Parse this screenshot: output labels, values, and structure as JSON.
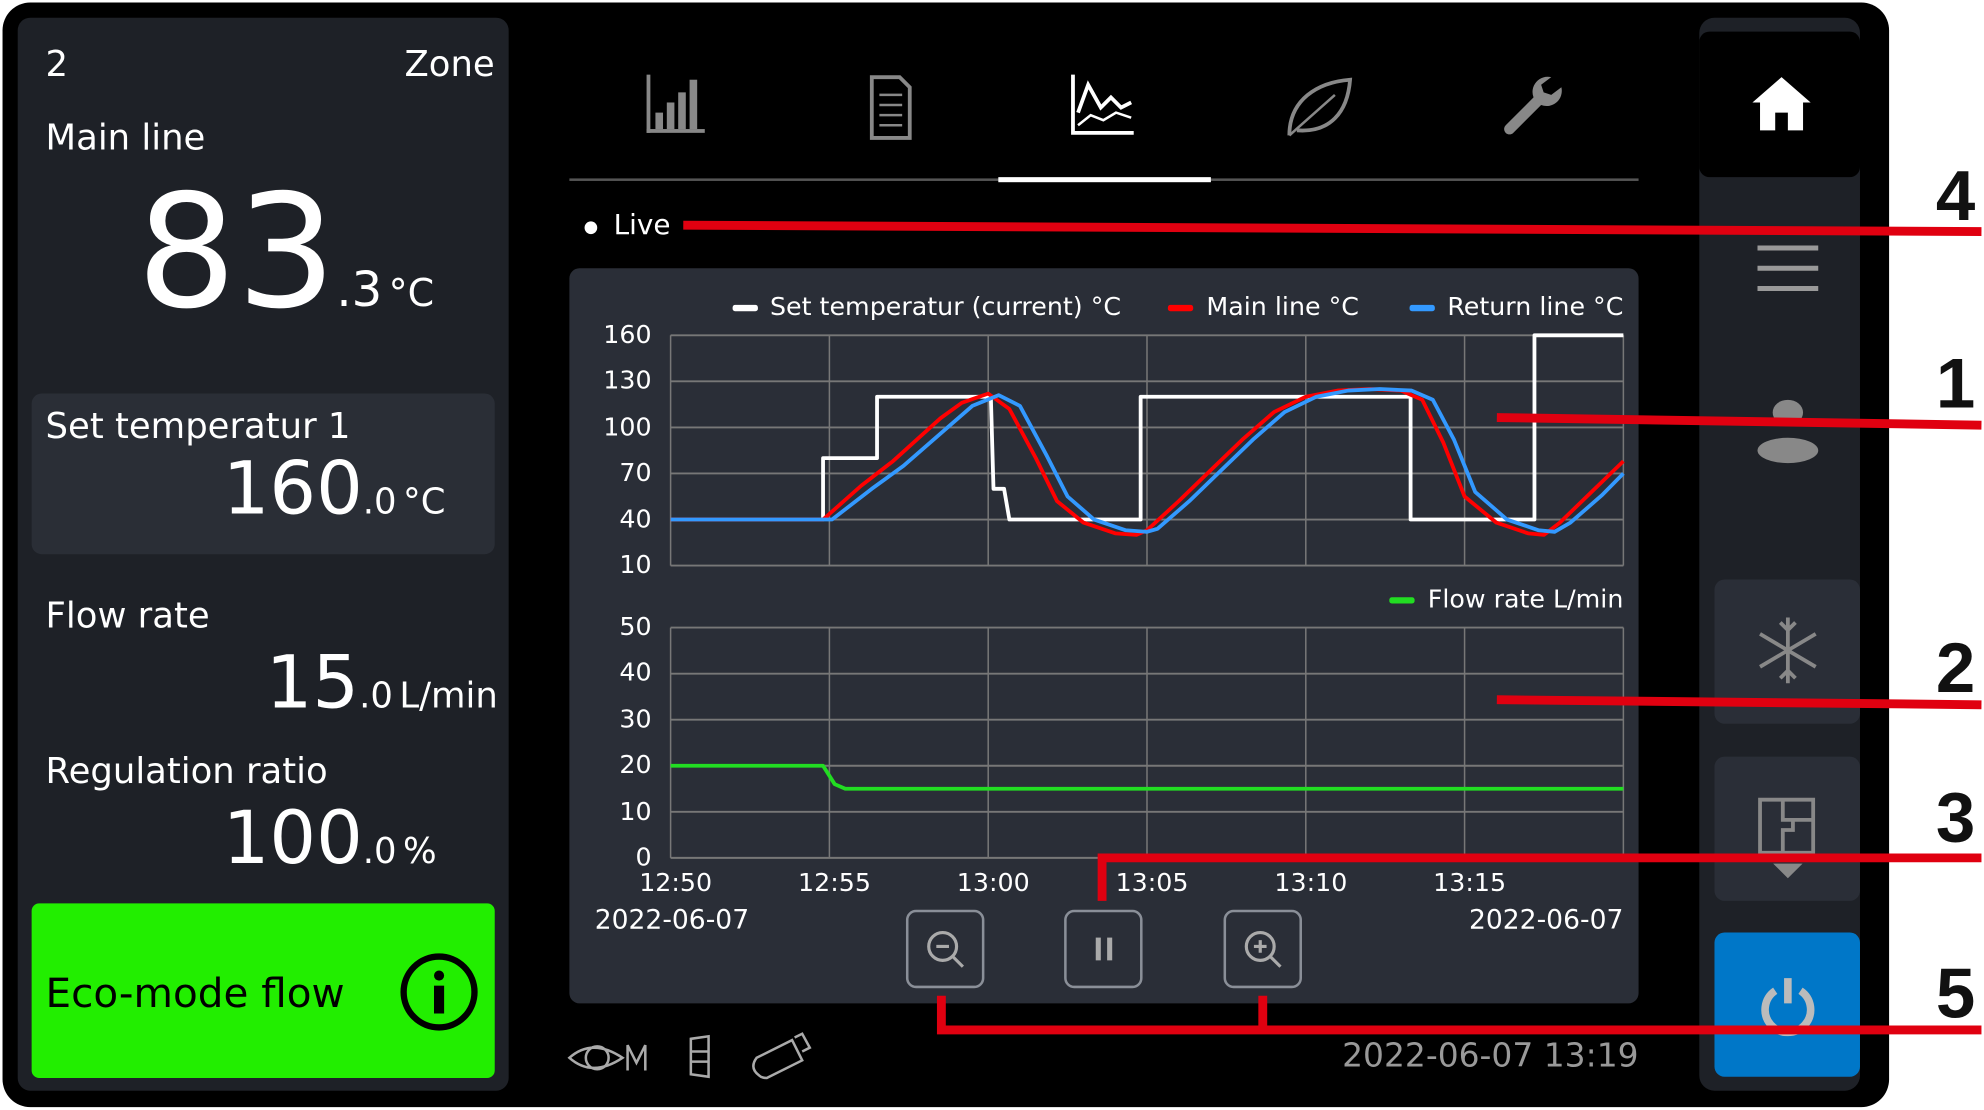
{
  "zone": {
    "number": "2",
    "label": "Zone"
  },
  "main_line": {
    "label": "Main line",
    "value_int": "83",
    "value_dec": ".3",
    "unit": "°C"
  },
  "set_temp": {
    "label": "Set temperatur 1",
    "value_int": "160",
    "value_dec": ".0",
    "unit": "°C"
  },
  "flow_rate": {
    "label": "Flow rate",
    "value_int": "15",
    "value_dec": ".0",
    "unit": "L/min"
  },
  "regulation": {
    "label": "Regulation ratio",
    "value_int": "100",
    "value_dec": ".0",
    "unit": "%"
  },
  "eco_button": {
    "label": "Eco-mode flow",
    "icon": "info-icon",
    "color": "#22ee00"
  },
  "tabs": [
    {
      "icon": "bar-chart-icon"
    },
    {
      "icon": "document-icon"
    },
    {
      "icon": "line-chart-icon",
      "active": true
    },
    {
      "icon": "leaf-icon"
    },
    {
      "icon": "wrench-icon"
    }
  ],
  "live_label": "Live",
  "controls": [
    {
      "icon": "zoom-out-icon"
    },
    {
      "icon": "pause-icon"
    },
    {
      "icon": "zoom-in-icon"
    }
  ],
  "status_bar": {
    "icons": [
      "eye-m-icon",
      "filter-icon",
      "usb-stick-icon"
    ],
    "datetime": "2022-06-07  13:19"
  },
  "sidebar": {
    "items": [
      {
        "icon": "home-icon",
        "active": true
      },
      {
        "icon": "menu-icon"
      },
      {
        "icon": "user-icon"
      },
      {
        "icon": "snowflake-icon"
      },
      {
        "icon": "floor-plan-icon"
      },
      {
        "icon": "power-icon",
        "color": "#0077c8"
      }
    ]
  },
  "callouts": [
    "4",
    "1",
    "2",
    "3",
    "5"
  ],
  "chart_data": [
    {
      "type": "line",
      "legend_placement": "top-right",
      "grid": true,
      "xlim": [
        "12:50",
        "13:20"
      ],
      "ylim": [
        10,
        160
      ],
      "yticks": [
        "160",
        "130",
        "100",
        "70",
        "40",
        "10"
      ],
      "series": [
        {
          "name": "Set temperatur (current) °C",
          "color": "#ffffff",
          "points": [
            [
              "12:50",
              40
            ],
            [
              "12:54:48",
              40
            ],
            [
              "12:54:48",
              80
            ],
            [
              "12:56:30",
              80
            ],
            [
              "12:56:30",
              120
            ],
            [
              "13:00:05",
              120
            ],
            [
              "13:00:10",
              60
            ],
            [
              "13:00:30",
              60
            ],
            [
              "13:00:40",
              40
            ],
            [
              "13:04:48",
              40
            ],
            [
              "13:04:48",
              120
            ],
            [
              "13:13:18",
              120
            ],
            [
              "13:13:18",
              40
            ],
            [
              "13:17:12",
              40
            ],
            [
              "13:17:12",
              160
            ],
            [
              "13:20",
              160
            ]
          ]
        },
        {
          "name": "Main line °C",
          "color": "#ff0000",
          "points": [
            [
              "12:50",
              40
            ],
            [
              "12:54:48",
              40
            ],
            [
              "12:56",
              62
            ],
            [
              "12:57",
              78
            ],
            [
              "12:58:30",
              106
            ],
            [
              "12:59:10",
              116
            ],
            [
              "13:00",
              122
            ],
            [
              "13:00:40",
              112
            ],
            [
              "13:01:30",
              80
            ],
            [
              "13:02:10",
              52
            ],
            [
              "13:03",
              38
            ],
            [
              "13:04",
              31
            ],
            [
              "13:04:40",
              30
            ],
            [
              "13:05",
              33
            ],
            [
              "13:06",
              52
            ],
            [
              "13:07",
              72
            ],
            [
              "13:08",
              92
            ],
            [
              "13:09",
              110
            ],
            [
              "13:10",
              120
            ],
            [
              "13:11",
              124
            ],
            [
              "13:12",
              125
            ],
            [
              "13:13",
              124
            ],
            [
              "13:13:40",
              118
            ],
            [
              "13:14:20",
              90
            ],
            [
              "13:15",
              55
            ],
            [
              "13:16",
              38
            ],
            [
              "13:17",
              31
            ],
            [
              "13:17:30",
              30
            ],
            [
              "13:18",
              38
            ],
            [
              "13:19",
              58
            ],
            [
              "13:20",
              78
            ]
          ]
        },
        {
          "name": "Return line °C",
          "color": "#3399ff",
          "points": [
            [
              "12:50",
              40
            ],
            [
              "12:55:05",
              40
            ],
            [
              "12:56:20",
              60
            ],
            [
              "12:57:20",
              75
            ],
            [
              "12:58:50",
              102
            ],
            [
              "12:59:30",
              114
            ],
            [
              "13:00:20",
              121
            ],
            [
              "13:01",
              114
            ],
            [
              "13:01:50",
              82
            ],
            [
              "13:02:30",
              55
            ],
            [
              "13:03:20",
              40
            ],
            [
              "13:04:20",
              33
            ],
            [
              "13:05",
              32
            ],
            [
              "13:05:20",
              34
            ],
            [
              "13:06:20",
              52
            ],
            [
              "13:07:20",
              72
            ],
            [
              "13:08:20",
              92
            ],
            [
              "13:09:20",
              110
            ],
            [
              "13:10:20",
              120
            ],
            [
              "13:11:20",
              124
            ],
            [
              "13:12:20",
              125
            ],
            [
              "13:13:20",
              124
            ],
            [
              "13:14",
              118
            ],
            [
              "13:14:40",
              92
            ],
            [
              "13:15:20",
              58
            ],
            [
              "13:16:20",
              40
            ],
            [
              "13:17:20",
              33
            ],
            [
              "13:17:50",
              32
            ],
            [
              "13:18:20",
              38
            ],
            [
              "13:19:20",
              56
            ],
            [
              "13:20",
              70
            ]
          ]
        }
      ]
    },
    {
      "type": "line",
      "legend_placement": "top-right",
      "grid": true,
      "xlim": [
        "12:50",
        "13:20"
      ],
      "ylim": [
        0,
        50
      ],
      "yticks": [
        "50",
        "40",
        "30",
        "20",
        "10",
        "0"
      ],
      "xticks": [
        "12:50",
        "12:55",
        "13:00",
        "13:05",
        "13:10",
        "13:15"
      ],
      "x_date_left": "2022-06-07",
      "x_date_right": "2022-06-07",
      "series": [
        {
          "name": "Flow rate L/min",
          "color": "#22dd22",
          "points": [
            [
              "12:50",
              20
            ],
            [
              "12:54:48",
              20
            ],
            [
              "12:55:10",
              16
            ],
            [
              "12:55:30",
              15
            ],
            [
              "13:20",
              15
            ]
          ]
        }
      ]
    }
  ]
}
